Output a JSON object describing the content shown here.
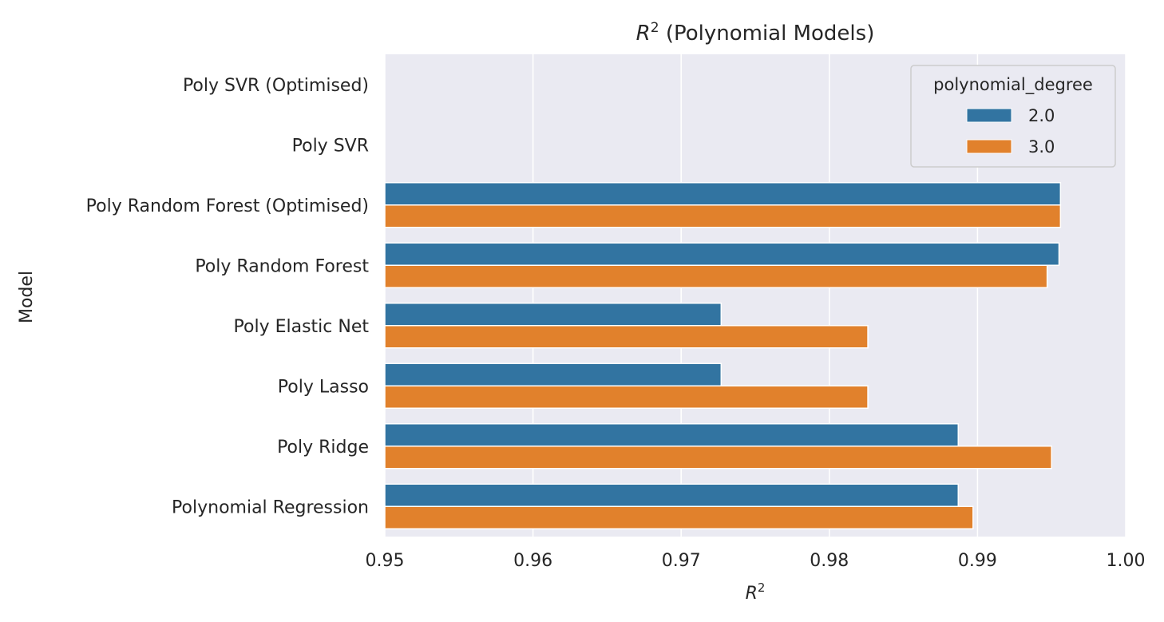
{
  "chart_data": {
    "type": "bar",
    "orientation": "horizontal",
    "title_symbol": "R",
    "title_exp": "2",
    "title_rest": "(Polynomial Models)",
    "xlabel_symbol": "R",
    "xlabel_exp": "2",
    "ylabel": "Model",
    "xlim": [
      0.95,
      1.0
    ],
    "xticks": [
      "0.95",
      "0.96",
      "0.97",
      "0.98",
      "0.99",
      "1.00"
    ],
    "xtick_values": [
      0.95,
      0.96,
      0.97,
      0.98,
      0.99,
      1.0
    ],
    "grid": true,
    "legend_position": "top-right",
    "legend_title": "polynomial_degree",
    "categories": [
      "Poly SVR (Optimised)",
      "Poly SVR",
      "Poly Random Forest (Optimised)",
      "Poly Random Forest",
      "Poly Elastic Net",
      "Poly Lasso",
      "Poly Ridge",
      "Polynomial Regression"
    ],
    "series": [
      {
        "name": "2.0",
        "color": "#3274a1",
        "values": [
          null,
          null,
          0.9956,
          0.9955,
          0.9727,
          0.9727,
          0.9887,
          0.9887
        ]
      },
      {
        "name": "3.0",
        "color": "#e1812c",
        "values": [
          null,
          null,
          0.9956,
          0.9947,
          0.9826,
          0.9826,
          0.995,
          0.9897
        ]
      }
    ],
    "background_color": "#eaeaf2"
  }
}
